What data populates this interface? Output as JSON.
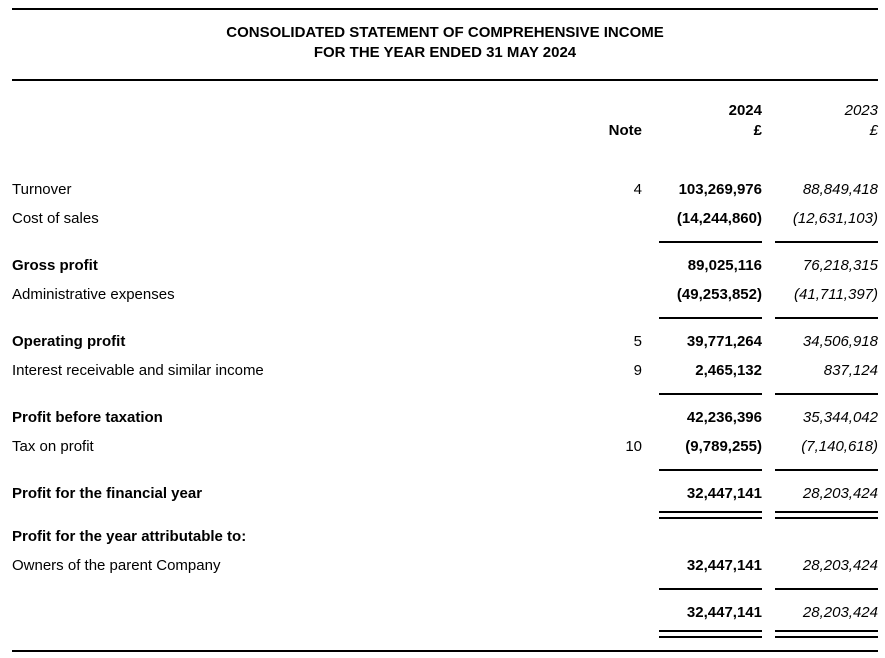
{
  "statement": {
    "title_line1": "CONSOLIDATED STATEMENT OF COMPREHENSIVE INCOME",
    "title_line2": "FOR THE YEAR ENDED 31 MAY 2024",
    "columns": {
      "note_label": "Note",
      "year_current": "2024",
      "year_prior": "2023",
      "currency_current": "£",
      "currency_prior": "£"
    },
    "rows": [
      {
        "type": "item",
        "label": "Turnover",
        "note": "4",
        "v2024": "103,269,976",
        "v2023": "88,849,418",
        "bold": false
      },
      {
        "type": "item",
        "label": "Cost of sales",
        "note": "",
        "v2024": "(14,244,860)",
        "v2023": "(12,631,103)",
        "bold": false
      },
      {
        "type": "rule"
      },
      {
        "type": "item",
        "label": "Gross profit",
        "note": "",
        "v2024": "89,025,116",
        "v2023": "76,218,315",
        "bold": true
      },
      {
        "type": "item",
        "label": "Administrative expenses",
        "note": "",
        "v2024": "(49,253,852)",
        "v2023": "(41,711,397)",
        "bold": false
      },
      {
        "type": "rule"
      },
      {
        "type": "item",
        "label": "Operating profit",
        "note": "5",
        "v2024": "39,771,264",
        "v2023": "34,506,918",
        "bold": true
      },
      {
        "type": "item",
        "label": "Interest receivable and similar income",
        "note": "9",
        "v2024": "2,465,132",
        "v2023": "837,124",
        "bold": false
      },
      {
        "type": "rule"
      },
      {
        "type": "item",
        "label": "Profit before taxation",
        "note": "",
        "v2024": "42,236,396",
        "v2023": "35,344,042",
        "bold": true
      },
      {
        "type": "item",
        "label": "Tax on profit",
        "note": "10",
        "v2024": "(9,789,255)",
        "v2023": "(7,140,618)",
        "bold": false
      },
      {
        "type": "rule"
      },
      {
        "type": "item",
        "label": "Profit for the financial year",
        "note": "",
        "v2024": "32,447,141",
        "v2023": "28,203,424",
        "bold": true
      },
      {
        "type": "double-rule"
      },
      {
        "type": "item",
        "label": "Profit for the year attributable to:",
        "note": "",
        "v2024": "",
        "v2023": "",
        "bold": true
      },
      {
        "type": "item",
        "label": "Owners of the parent Company",
        "note": "",
        "v2024": "32,447,141",
        "v2023": "28,203,424",
        "bold": false
      },
      {
        "type": "rule"
      },
      {
        "type": "item",
        "label": "",
        "note": "",
        "v2024": "32,447,141",
        "v2023": "28,203,424",
        "bold": false
      },
      {
        "type": "double-rule"
      }
    ]
  }
}
